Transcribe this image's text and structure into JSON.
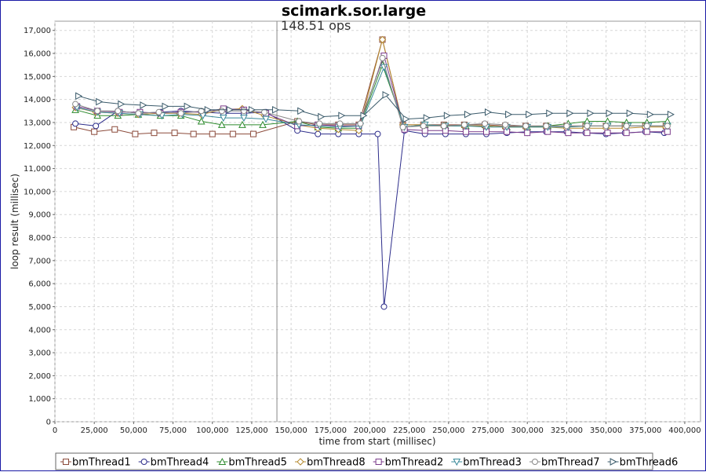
{
  "chart_data": {
    "type": "line",
    "title": "scimark.sor.large",
    "xlabel": "time from start (millisec)",
    "ylabel": "loop result (millisec)",
    "xlim": [
      0,
      410000
    ],
    "ylim": [
      0,
      17400
    ],
    "x_ticks": [
      0,
      25000,
      50000,
      75000,
      100000,
      125000,
      150000,
      175000,
      200000,
      225000,
      250000,
      275000,
      300000,
      325000,
      350000,
      375000,
      400000
    ],
    "x_tick_labels": [
      "0",
      "25,000",
      "50,000",
      "75,000",
      "100,000",
      "125,000",
      "150,000",
      "175,000",
      "200,000",
      "225,000",
      "250,000",
      "275,000",
      "300,000",
      "325,000",
      "350,000",
      "375,000",
      "400,000"
    ],
    "y_ticks": [
      0,
      1000,
      2000,
      3000,
      4000,
      5000,
      6000,
      7000,
      8000,
      9000,
      10000,
      11000,
      12000,
      13000,
      14000,
      15000,
      16000,
      17000
    ],
    "y_tick_labels": [
      "0",
      "1,000",
      "2,000",
      "3,000",
      "4,000",
      "5,000",
      "6,000",
      "7,000",
      "8,000",
      "9,000",
      "10,000",
      "11,000",
      "12,000",
      "13,000",
      "14,000",
      "15,000",
      "16,000",
      "17,000"
    ],
    "grid": true,
    "legend_position": "bottom",
    "marker": {
      "x": 141000,
      "label": "148.51 ops"
    },
    "series": [
      {
        "name": "bmThread1",
        "color": "#8b4a3a",
        "marker": "square",
        "x": [
          12000,
          25000,
          38000,
          51000,
          63000,
          76000,
          88000,
          100000,
          113000,
          126000,
          154000,
          167000,
          180000,
          193000,
          208000,
          221000,
          234000,
          247000,
          260000,
          273000,
          286000,
          299000,
          312000,
          325000,
          337000,
          350000,
          362000,
          375000,
          388000
        ],
        "y": [
          12800,
          12600,
          12700,
          12500,
          12550,
          12550,
          12500,
          12500,
          12500,
          12500,
          13050,
          12900,
          12900,
          12900,
          16600,
          12900,
          12900,
          12900,
          12900,
          12900,
          12850,
          12850,
          12850,
          12850,
          12850,
          12850,
          12850,
          12850,
          12850
        ]
      },
      {
        "name": "bmThread4",
        "color": "#2c2c8a",
        "marker": "circle",
        "x": [
          13000,
          26000,
          40000,
          53000,
          67000,
          80000,
          93000,
          107000,
          120000,
          134000,
          154000,
          167000,
          180000,
          193000,
          205000,
          209000,
          222000,
          235000,
          248000,
          261000,
          274000,
          287000,
          300000,
          312000,
          325000,
          337000,
          350000,
          362000,
          375000,
          387000
        ],
        "y": [
          12950,
          12850,
          13500,
          13400,
          13450,
          13500,
          13450,
          13400,
          13400,
          13450,
          12650,
          12500,
          12500,
          12500,
          12500,
          5000,
          12650,
          12500,
          12500,
          12500,
          12500,
          12550,
          12600,
          12600,
          12600,
          12550,
          12500,
          12550,
          12600,
          12550
        ]
      },
      {
        "name": "bmThread5",
        "color": "#2e8b2e",
        "marker": "triangle-up",
        "x": [
          13000,
          27000,
          40000,
          53000,
          67000,
          80000,
          93000,
          106000,
          119000,
          132000,
          154000,
          167000,
          180000,
          193000,
          208000,
          222000,
          235000,
          248000,
          261000,
          274000,
          287000,
          300000,
          313000,
          326000,
          338000,
          351000,
          363000,
          376000,
          389000
        ],
        "y": [
          13550,
          13300,
          13300,
          13350,
          13300,
          13300,
          13050,
          12900,
          12900,
          12900,
          13050,
          12800,
          12750,
          12750,
          15500,
          12800,
          12900,
          12850,
          12850,
          12850,
          12800,
          12800,
          12850,
          12950,
          13050,
          13050,
          13000,
          13000,
          13050
        ]
      },
      {
        "name": "bmThread8",
        "color": "#b5892c",
        "marker": "diamond",
        "x": [
          13000,
          26000,
          40000,
          53000,
          66000,
          79000,
          93000,
          106000,
          119000,
          133000,
          154000,
          167000,
          180000,
          193000,
          208000,
          221000,
          234000,
          247000,
          260000,
          273000,
          286000,
          299000,
          312000,
          325000,
          337000,
          350000,
          362000,
          375000,
          388000
        ],
        "y": [
          13650,
          13450,
          13400,
          13350,
          13400,
          13400,
          13350,
          13550,
          13600,
          13300,
          12900,
          12750,
          12700,
          12650,
          16600,
          12900,
          12900,
          12850,
          12850,
          12850,
          12800,
          12800,
          12800,
          12750,
          12750,
          12750,
          12750,
          12800,
          12800
        ]
      },
      {
        "name": "bmThread2",
        "color": "#7a3a8a",
        "marker": "square",
        "x": [
          14000,
          27000,
          41000,
          54000,
          67000,
          80000,
          94000,
          107000,
          120000,
          134000,
          154000,
          167000,
          180000,
          193000,
          209000,
          222000,
          235000,
          248000,
          261000,
          274000,
          287000,
          300000,
          313000,
          326000,
          338000,
          351000,
          363000,
          376000,
          389000
        ],
        "y": [
          13700,
          13500,
          13450,
          13450,
          13400,
          13450,
          13450,
          13600,
          13550,
          13400,
          12850,
          12900,
          12850,
          12850,
          15900,
          12700,
          12650,
          12650,
          12600,
          12600,
          12600,
          12550,
          12600,
          12550,
          12550,
          12550,
          12550,
          12600,
          12600
        ]
      },
      {
        "name": "bmThread3",
        "color": "#3a8a9a",
        "marker": "triangle-down",
        "x": [
          14000,
          27000,
          41000,
          54000,
          68000,
          81000,
          94000,
          107000,
          120000,
          134000,
          155000,
          168000,
          181000,
          194000,
          209000,
          222000,
          235000,
          248000,
          261000,
          274000,
          287000,
          300000,
          313000,
          326000,
          339000,
          351000,
          364000,
          377000,
          389000
        ],
        "y": [
          13650,
          13450,
          13400,
          13350,
          13300,
          13350,
          13300,
          13200,
          13200,
          13150,
          12900,
          12850,
          12800,
          12850,
          15400,
          12800,
          12900,
          12850,
          12850,
          12800,
          12800,
          12800,
          12800,
          12800,
          12850,
          12850,
          12850,
          12850,
          12850
        ]
      },
      {
        "name": "bmThread7",
        "color": "#888888",
        "marker": "circle",
        "x": [
          13000,
          27000,
          40000,
          53000,
          66000,
          80000,
          93000,
          106000,
          120000,
          133000,
          155000,
          168000,
          181000,
          194000,
          208000,
          221000,
          234000,
          247000,
          260000,
          273000,
          286000,
          299000,
          312000,
          325000,
          338000,
          350000,
          363000,
          376000,
          389000
        ],
        "y": [
          13800,
          13500,
          13500,
          13400,
          13450,
          13400,
          13500,
          13500,
          13500,
          13450,
          13050,
          12950,
          12950,
          12950,
          15800,
          12800,
          12850,
          12850,
          12900,
          12950,
          12900,
          12850,
          12850,
          12850,
          12850,
          12850,
          12850,
          12850,
          12850
        ]
      },
      {
        "name": "bmThread6",
        "color": "#3a5a6a",
        "marker": "triangle-right",
        "x": [
          15000,
          28000,
          42000,
          56000,
          70000,
          84000,
          97000,
          111000,
          125000,
          140000,
          156000,
          169000,
          182000,
          196000,
          210000,
          223000,
          236000,
          249000,
          262000,
          275000,
          288000,
          301000,
          314000,
          327000,
          340000,
          352000,
          365000,
          378000,
          391000
        ],
        "y": [
          14150,
          13900,
          13800,
          13750,
          13700,
          13700,
          13550,
          13550,
          13550,
          13550,
          13500,
          13250,
          13300,
          13300,
          14200,
          13150,
          13200,
          13300,
          13350,
          13450,
          13350,
          13350,
          13400,
          13400,
          13400,
          13400,
          13400,
          13350,
          13350
        ]
      }
    ]
  }
}
